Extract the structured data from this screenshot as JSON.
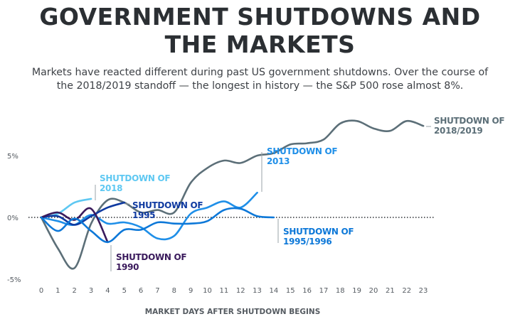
{
  "title_line1": "GOVERNMENT SHUTDOWNS AND",
  "title_line2": "THE MARKETS",
  "subtitle_line1": "Markets have reacted different during past US government shutdowns. Over the course of",
  "subtitle_line2": "the 2018/2019 standoff — the longest in history — the S&P 500 rose almost 8%.",
  "chart_data": {
    "type": "line",
    "title": "GOVERNMENT SHUTDOWNS AND THE MARKETS",
    "xlabel": "MARKET DAYS AFTER SHUTDOWN BEGINS",
    "ylabel": "",
    "xlim": [
      0,
      23
    ],
    "ylim": [
      -5,
      8
    ],
    "x_ticks": [
      "0",
      "1",
      "2",
      "3",
      "4",
      "5",
      "6",
      "7",
      "8",
      "9",
      "10",
      "11",
      "12",
      "13",
      "14",
      "15",
      "16",
      "17",
      "18",
      "19",
      "20",
      "21",
      "22",
      "23"
    ],
    "y_ticks": [
      {
        "value": 5,
        "label": "5%"
      },
      {
        "value": 0,
        "label": "0%"
      },
      {
        "value": -5,
        "label": "-5%"
      }
    ],
    "grid": false,
    "zero_line": "dotted",
    "series": [
      {
        "name": "SHUTDOWN OF 2018/2019",
        "label_lines": [
          "SHUTDOWN OF",
          "2018/2019"
        ],
        "color": "#5c6f78",
        "x": [
          0,
          1,
          2,
          3,
          4,
          5,
          6,
          7,
          8,
          9,
          10,
          11,
          12,
          13,
          14,
          15,
          16,
          17,
          18,
          19,
          20,
          21,
          22,
          23
        ],
        "values": [
          0,
          -2.5,
          -4.1,
          -0.5,
          1.4,
          1.2,
          0.4,
          0.6,
          0.4,
          2.8,
          4.0,
          4.6,
          4.4,
          5.0,
          5.2,
          5.9,
          6.0,
          6.3,
          7.6,
          7.8,
          7.2,
          7.0,
          7.8,
          7.4
        ]
      },
      {
        "name": "SHUTDOWN OF 2013",
        "label_lines": [
          "SHUTDOWN OF",
          "2013"
        ],
        "color": "#1f8fe8",
        "x": [
          0,
          1,
          2,
          3,
          4,
          5,
          6,
          7,
          8,
          9,
          10,
          11,
          12,
          13
        ],
        "values": [
          0,
          -0.3,
          -0.6,
          0.2,
          -0.5,
          -0.4,
          -0.8,
          -1.7,
          -1.5,
          0.3,
          0.8,
          1.3,
          0.8,
          2.0
        ]
      },
      {
        "name": "SHUTDOWN OF 2018",
        "label_lines": [
          "SHUTDOWN OF",
          "2018"
        ],
        "color": "#5ec8f2",
        "x": [
          0,
          1,
          2,
          3
        ],
        "values": [
          0,
          0.3,
          1.2,
          1.5
        ]
      },
      {
        "name": "SHUTDOWN OF 1995",
        "label_lines": [
          "SHUTDOWN OF",
          "1995"
        ],
        "color": "#0f3aa0",
        "x": [
          0,
          1,
          2,
          3,
          4,
          5
        ],
        "values": [
          0,
          0.1,
          -0.6,
          0.1,
          0.8,
          1.2
        ]
      },
      {
        "name": "SHUTDOWN OF 1990",
        "label_lines": [
          "SHUTDOWN OF",
          "1990"
        ],
        "color": "#3a1a5c",
        "x": [
          0,
          1,
          2,
          3,
          4
        ],
        "values": [
          0,
          0.4,
          -0.2,
          0.7,
          -2.0
        ]
      },
      {
        "name": "SHUTDOWN OF 1995/1996",
        "label_lines": [
          "SHUTDOWN OF",
          "1995/1996"
        ],
        "color": "#0d78d8",
        "x": [
          0,
          1,
          2,
          3,
          4,
          5,
          6,
          7,
          8,
          9,
          10,
          11,
          12,
          13,
          14
        ],
        "values": [
          0,
          -1.1,
          -0.1,
          -1.1,
          -2.0,
          -1.0,
          -1.0,
          -0.4,
          -0.5,
          -0.5,
          -0.3,
          0.6,
          0.7,
          0.1,
          0.0
        ]
      }
    ]
  }
}
